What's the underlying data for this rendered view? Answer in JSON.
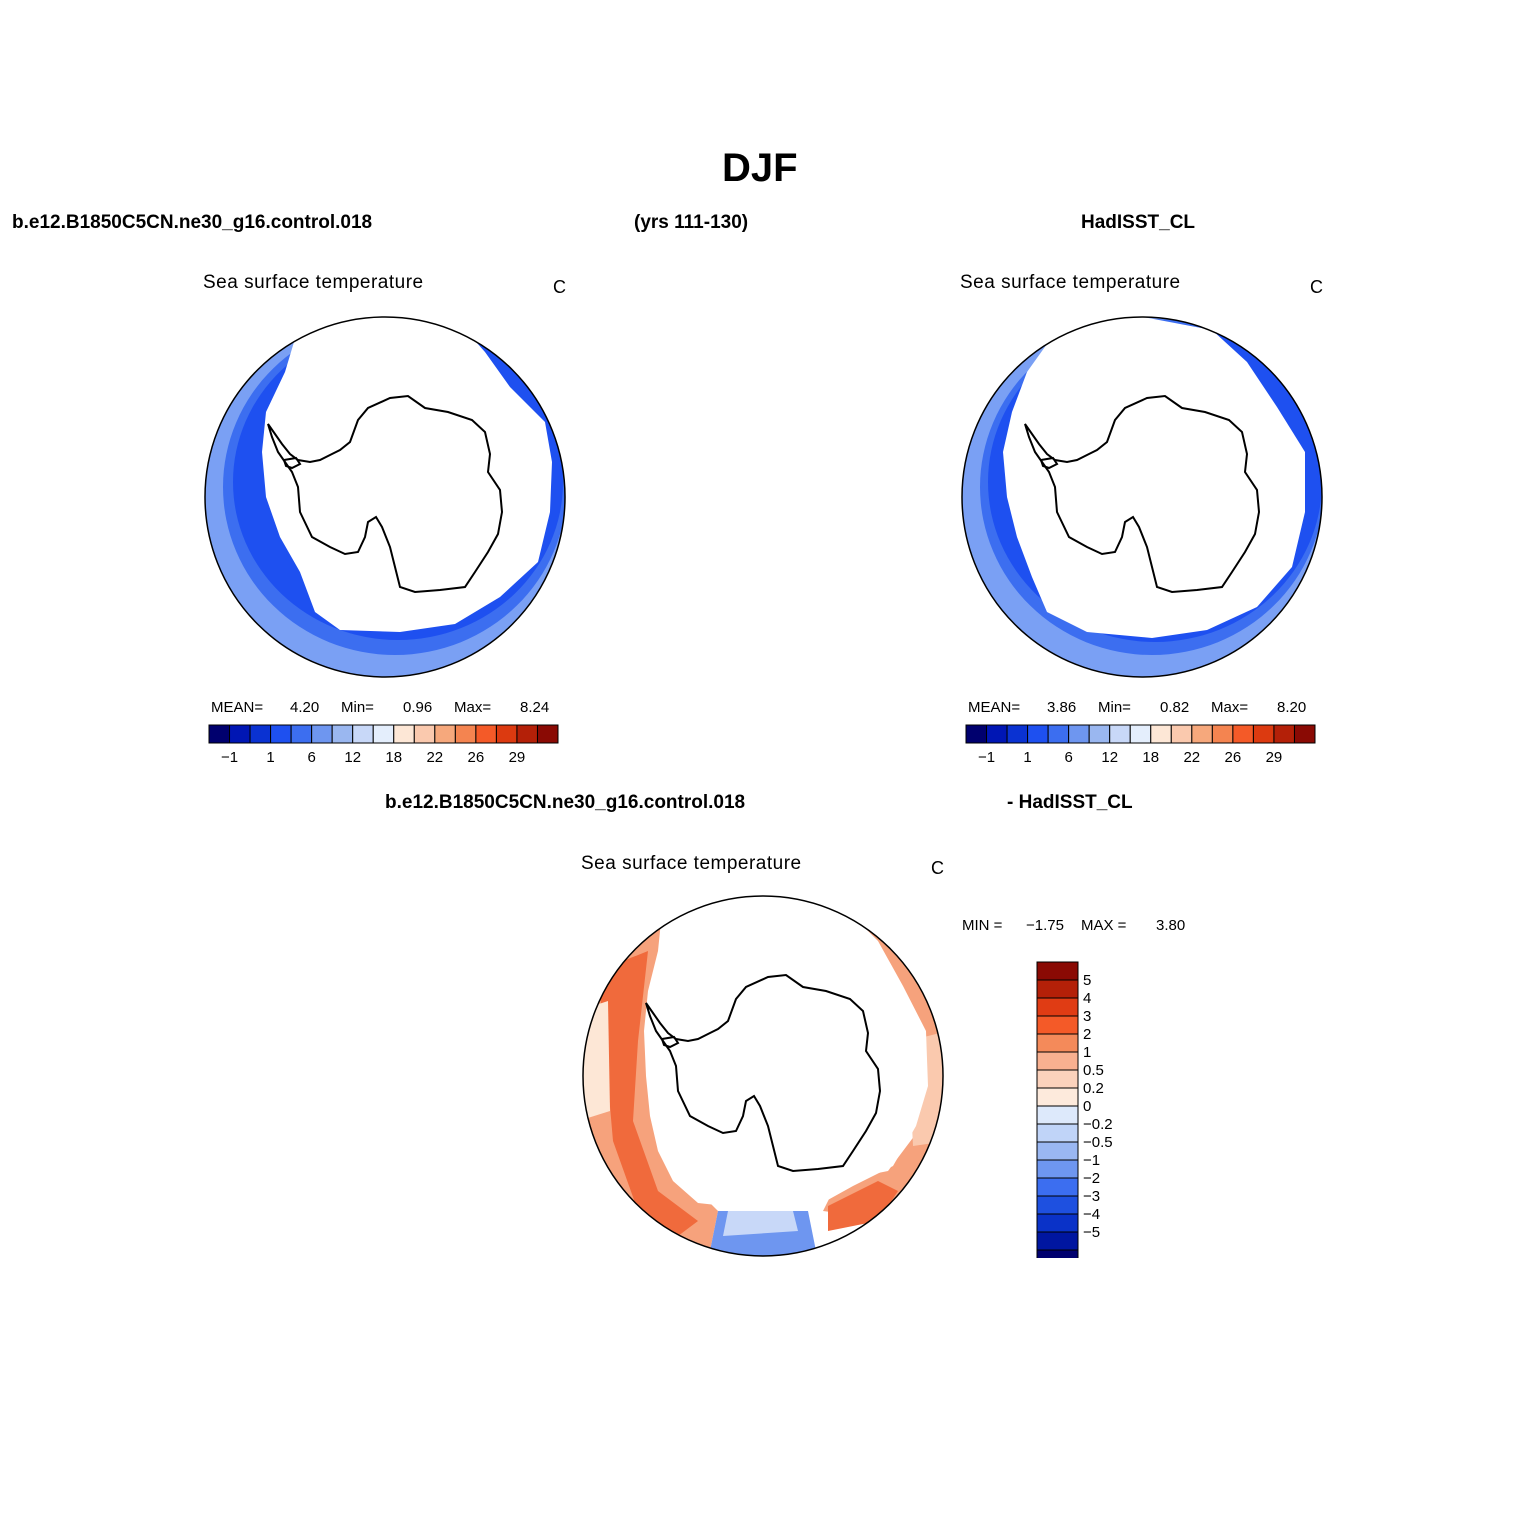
{
  "title": "DJF",
  "top_headers": {
    "case_name": "b.e12.B1850C5CN.ne30_g16.control.018",
    "years": "(yrs 111-130)",
    "obs_name": "HadISST_CL"
  },
  "panels": {
    "model": {
      "title": "Sea surface temperature",
      "units": "C",
      "mean_label": "MEAN=",
      "mean": "4.20",
      "min_label": "Min=",
      "min": "0.96",
      "max_label": "Max=",
      "max": "8.24"
    },
    "obs": {
      "title": "Sea surface temperature",
      "units": "C",
      "mean_label": "MEAN=",
      "mean": "3.86",
      "min_label": "Min=",
      "min": "0.82",
      "max_label": "Max=",
      "max": "8.20"
    },
    "diff": {
      "header_left": "b.e12.B1850C5CN.ne30_g16.control.018",
      "header_right": "- HadISST_CL",
      "title": "Sea surface temperature",
      "units": "C",
      "min_label": "MIN =",
      "min": "−1.75",
      "max_label": "MAX =",
      "max": "3.80"
    }
  },
  "sst_colorbar": {
    "colors": [
      "#00006e",
      "#0016b4",
      "#0a32d2",
      "#1e50f0",
      "#3c6ef0",
      "#6e96f0",
      "#9ab7f0",
      "#c8d8f8",
      "#e4eefc",
      "#fde7d6",
      "#fac9ae",
      "#f6a87c",
      "#f48450",
      "#f45a28",
      "#dc3a10",
      "#b42008",
      "#8a0a04"
    ],
    "tick_labels": [
      "−1",
      "1",
      "6",
      "12",
      "18",
      "22",
      "26",
      "29"
    ]
  },
  "diff_colorbar": {
    "colors_top_to_bottom": [
      "#8a0a04",
      "#b42008",
      "#e03c14",
      "#f45a28",
      "#f48a5a",
      "#f8b090",
      "#fbd2bc",
      "#fdeadc",
      "#dde9fb",
      "#c0d4f8",
      "#9ab7f2",
      "#6e96f0",
      "#3c6ef0",
      "#1e50e0",
      "#0a32c8",
      "#0016a0",
      "#00006e"
    ],
    "tick_labels_top_to_bottom": [
      "5",
      "4",
      "3",
      "2",
      "1",
      "0.5",
      "0.2",
      "0",
      "−0.2",
      "−0.5",
      "−1",
      "−2",
      "−3",
      "−4",
      "−5"
    ]
  }
}
